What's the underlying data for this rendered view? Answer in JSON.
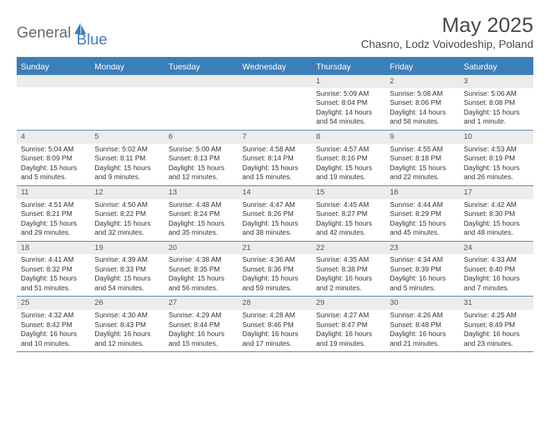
{
  "logo": {
    "text1": "General",
    "text2": "Blue"
  },
  "title": "May 2025",
  "location": "Chasno, Lodz Voivodeship, Poland",
  "colors": {
    "header_bg": "#3c7fb8",
    "header_text": "#ffffff",
    "daynum_bg": "#ececec",
    "border": "#3c7fb8",
    "body_text": "#333333",
    "logo_gray": "#6b6b6b",
    "logo_blue": "#3c7fb8"
  },
  "typography": {
    "title_fontsize": 30,
    "location_fontsize": 16,
    "dayheader_fontsize": 12,
    "daynum_fontsize": 11,
    "cell_fontsize": 10
  },
  "day_names": [
    "Sunday",
    "Monday",
    "Tuesday",
    "Wednesday",
    "Thursday",
    "Friday",
    "Saturday"
  ],
  "weeks": [
    [
      {
        "n": "",
        "lines": [
          "",
          "",
          ""
        ]
      },
      {
        "n": "",
        "lines": [
          "",
          "",
          ""
        ]
      },
      {
        "n": "",
        "lines": [
          "",
          "",
          ""
        ]
      },
      {
        "n": "",
        "lines": [
          "",
          "",
          ""
        ]
      },
      {
        "n": "1",
        "lines": [
          "Sunrise: 5:09 AM",
          "Sunset: 8:04 PM",
          "Daylight: 14 hours and 54 minutes."
        ]
      },
      {
        "n": "2",
        "lines": [
          "Sunrise: 5:08 AM",
          "Sunset: 8:06 PM",
          "Daylight: 14 hours and 58 minutes."
        ]
      },
      {
        "n": "3",
        "lines": [
          "Sunrise: 5:06 AM",
          "Sunset: 8:08 PM",
          "Daylight: 15 hours and 1 minute."
        ]
      }
    ],
    [
      {
        "n": "4",
        "lines": [
          "Sunrise: 5:04 AM",
          "Sunset: 8:09 PM",
          "Daylight: 15 hours and 5 minutes."
        ]
      },
      {
        "n": "5",
        "lines": [
          "Sunrise: 5:02 AM",
          "Sunset: 8:11 PM",
          "Daylight: 15 hours and 9 minutes."
        ]
      },
      {
        "n": "6",
        "lines": [
          "Sunrise: 5:00 AM",
          "Sunset: 8:13 PM",
          "Daylight: 15 hours and 12 minutes."
        ]
      },
      {
        "n": "7",
        "lines": [
          "Sunrise: 4:58 AM",
          "Sunset: 8:14 PM",
          "Daylight: 15 hours and 15 minutes."
        ]
      },
      {
        "n": "8",
        "lines": [
          "Sunrise: 4:57 AM",
          "Sunset: 8:16 PM",
          "Daylight: 15 hours and 19 minutes."
        ]
      },
      {
        "n": "9",
        "lines": [
          "Sunrise: 4:55 AM",
          "Sunset: 8:18 PM",
          "Daylight: 15 hours and 22 minutes."
        ]
      },
      {
        "n": "10",
        "lines": [
          "Sunrise: 4:53 AM",
          "Sunset: 8:19 PM",
          "Daylight: 15 hours and 26 minutes."
        ]
      }
    ],
    [
      {
        "n": "11",
        "lines": [
          "Sunrise: 4:51 AM",
          "Sunset: 8:21 PM",
          "Daylight: 15 hours and 29 minutes."
        ]
      },
      {
        "n": "12",
        "lines": [
          "Sunrise: 4:50 AM",
          "Sunset: 8:22 PM",
          "Daylight: 15 hours and 32 minutes."
        ]
      },
      {
        "n": "13",
        "lines": [
          "Sunrise: 4:48 AM",
          "Sunset: 8:24 PM",
          "Daylight: 15 hours and 35 minutes."
        ]
      },
      {
        "n": "14",
        "lines": [
          "Sunrise: 4:47 AM",
          "Sunset: 8:26 PM",
          "Daylight: 15 hours and 38 minutes."
        ]
      },
      {
        "n": "15",
        "lines": [
          "Sunrise: 4:45 AM",
          "Sunset: 8:27 PM",
          "Daylight: 15 hours and 42 minutes."
        ]
      },
      {
        "n": "16",
        "lines": [
          "Sunrise: 4:44 AM",
          "Sunset: 8:29 PM",
          "Daylight: 15 hours and 45 minutes."
        ]
      },
      {
        "n": "17",
        "lines": [
          "Sunrise: 4:42 AM",
          "Sunset: 8:30 PM",
          "Daylight: 15 hours and 48 minutes."
        ]
      }
    ],
    [
      {
        "n": "18",
        "lines": [
          "Sunrise: 4:41 AM",
          "Sunset: 8:32 PM",
          "Daylight: 15 hours and 51 minutes."
        ]
      },
      {
        "n": "19",
        "lines": [
          "Sunrise: 4:39 AM",
          "Sunset: 8:33 PM",
          "Daylight: 15 hours and 54 minutes."
        ]
      },
      {
        "n": "20",
        "lines": [
          "Sunrise: 4:38 AM",
          "Sunset: 8:35 PM",
          "Daylight: 15 hours and 56 minutes."
        ]
      },
      {
        "n": "21",
        "lines": [
          "Sunrise: 4:36 AM",
          "Sunset: 8:36 PM",
          "Daylight: 15 hours and 59 minutes."
        ]
      },
      {
        "n": "22",
        "lines": [
          "Sunrise: 4:35 AM",
          "Sunset: 8:38 PM",
          "Daylight: 16 hours and 2 minutes."
        ]
      },
      {
        "n": "23",
        "lines": [
          "Sunrise: 4:34 AM",
          "Sunset: 8:39 PM",
          "Daylight: 16 hours and 5 minutes."
        ]
      },
      {
        "n": "24",
        "lines": [
          "Sunrise: 4:33 AM",
          "Sunset: 8:40 PM",
          "Daylight: 16 hours and 7 minutes."
        ]
      }
    ],
    [
      {
        "n": "25",
        "lines": [
          "Sunrise: 4:32 AM",
          "Sunset: 8:42 PM",
          "Daylight: 16 hours and 10 minutes."
        ]
      },
      {
        "n": "26",
        "lines": [
          "Sunrise: 4:30 AM",
          "Sunset: 8:43 PM",
          "Daylight: 16 hours and 12 minutes."
        ]
      },
      {
        "n": "27",
        "lines": [
          "Sunrise: 4:29 AM",
          "Sunset: 8:44 PM",
          "Daylight: 16 hours and 15 minutes."
        ]
      },
      {
        "n": "28",
        "lines": [
          "Sunrise: 4:28 AM",
          "Sunset: 8:46 PM",
          "Daylight: 16 hours and 17 minutes."
        ]
      },
      {
        "n": "29",
        "lines": [
          "Sunrise: 4:27 AM",
          "Sunset: 8:47 PM",
          "Daylight: 16 hours and 19 minutes."
        ]
      },
      {
        "n": "30",
        "lines": [
          "Sunrise: 4:26 AM",
          "Sunset: 8:48 PM",
          "Daylight: 16 hours and 21 minutes."
        ]
      },
      {
        "n": "31",
        "lines": [
          "Sunrise: 4:25 AM",
          "Sunset: 8:49 PM",
          "Daylight: 16 hours and 23 minutes."
        ]
      }
    ]
  ]
}
